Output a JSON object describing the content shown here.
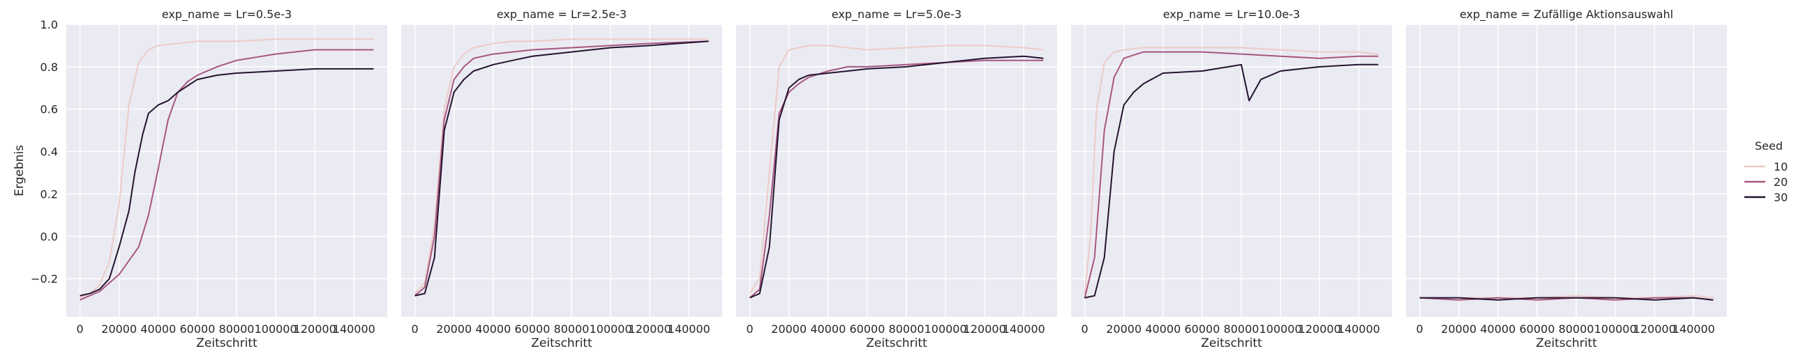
{
  "colors": {
    "panel_bg": "#EAEAF2",
    "grid": "#ffffff",
    "text": "#262626",
    "seed_10": "#eccbc7",
    "seed_20": "#a7567f",
    "seed_30": "#24132f"
  },
  "chart_data": {
    "type": "line",
    "ylabel": "Ergebnis",
    "xlabel": "Zeitschritt",
    "ylim": [
      -0.38,
      1.0
    ],
    "xlim": [
      -7000,
      157000
    ],
    "yticks": [
      -0.2,
      0.0,
      0.2,
      0.4,
      0.6,
      0.8,
      1.0
    ],
    "ytick_labels": [
      "−0.2",
      "0.0",
      "0.2",
      "0.4",
      "0.6",
      "0.8",
      "1.0"
    ],
    "xticks": [
      0,
      20000,
      40000,
      60000,
      80000,
      100000,
      120000,
      140000
    ],
    "xtick_labels": [
      "0",
      "20000",
      "40000",
      "60000",
      "80000",
      "100000",
      "120000",
      "140000"
    ],
    "grid": true,
    "legend": {
      "title": "Seed",
      "placement": "right",
      "entries": [
        {
          "label": "10",
          "color": "#eccbc7"
        },
        {
          "label": "20",
          "color": "#a7567f"
        },
        {
          "label": "30",
          "color": "#24132f"
        }
      ]
    },
    "panels": [
      {
        "title": "exp_name = Lr=0.5e-3",
        "series": [
          {
            "name": "10",
            "x": [
              0,
              5000,
              10000,
              15000,
              20000,
              25000,
              30000,
              35000,
              40000,
              50000,
              60000,
              70000,
              80000,
              100000,
              120000,
              150000
            ],
            "y": [
              -0.29,
              -0.27,
              -0.23,
              -0.12,
              0.15,
              0.62,
              0.82,
              0.88,
              0.9,
              0.91,
              0.92,
              0.92,
              0.92,
              0.93,
              0.93,
              0.93
            ]
          },
          {
            "name": "20",
            "x": [
              0,
              10000,
              20000,
              30000,
              35000,
              40000,
              45000,
              50000,
              55000,
              60000,
              70000,
              80000,
              100000,
              120000,
              150000
            ],
            "y": [
              -0.3,
              -0.26,
              -0.18,
              -0.05,
              0.1,
              0.32,
              0.55,
              0.68,
              0.73,
              0.76,
              0.8,
              0.83,
              0.86,
              0.88,
              0.88
            ]
          },
          {
            "name": "30",
            "x": [
              0,
              5000,
              10000,
              15000,
              20000,
              25000,
              28000,
              32000,
              35000,
              40000,
              45000,
              50000,
              60000,
              70000,
              80000,
              100000,
              120000,
              150000
            ],
            "y": [
              -0.28,
              -0.27,
              -0.25,
              -0.2,
              -0.05,
              0.12,
              0.3,
              0.48,
              0.58,
              0.62,
              0.64,
              0.68,
              0.74,
              0.76,
              0.77,
              0.78,
              0.79,
              0.79
            ]
          }
        ]
      },
      {
        "title": "exp_name = Lr=2.5e-3",
        "series": [
          {
            "name": "10",
            "x": [
              0,
              5000,
              10000,
              15000,
              20000,
              25000,
              30000,
              40000,
              50000,
              60000,
              80000,
              100000,
              120000,
              150000
            ],
            "y": [
              -0.27,
              -0.22,
              0.05,
              0.6,
              0.8,
              0.86,
              0.89,
              0.91,
              0.92,
              0.92,
              0.93,
              0.93,
              0.93,
              0.93
            ]
          },
          {
            "name": "20",
            "x": [
              0,
              5000,
              10000,
              15000,
              20000,
              25000,
              30000,
              40000,
              50000,
              60000,
              80000,
              100000,
              120000,
              150000
            ],
            "y": [
              -0.28,
              -0.24,
              0.0,
              0.55,
              0.74,
              0.8,
              0.84,
              0.86,
              0.87,
              0.88,
              0.89,
              0.9,
              0.91,
              0.92
            ]
          },
          {
            "name": "30",
            "x": [
              0,
              5000,
              10000,
              15000,
              20000,
              25000,
              30000,
              40000,
              50000,
              60000,
              80000,
              100000,
              120000,
              150000
            ],
            "y": [
              -0.28,
              -0.27,
              -0.1,
              0.5,
              0.68,
              0.74,
              0.78,
              0.81,
              0.83,
              0.85,
              0.87,
              0.89,
              0.9,
              0.92
            ]
          }
        ]
      },
      {
        "title": "exp_name = Lr=5.0e-3",
        "series": [
          {
            "name": "10",
            "x": [
              0,
              5000,
              10000,
              15000,
              20000,
              30000,
              40000,
              50000,
              60000,
              80000,
              100000,
              120000,
              140000,
              150000
            ],
            "y": [
              -0.27,
              -0.2,
              0.3,
              0.8,
              0.88,
              0.9,
              0.9,
              0.89,
              0.88,
              0.89,
              0.9,
              0.9,
              0.89,
              0.88
            ]
          },
          {
            "name": "20",
            "x": [
              0,
              5000,
              10000,
              15000,
              20000,
              25000,
              30000,
              40000,
              50000,
              60000,
              80000,
              100000,
              120000,
              140000,
              150000
            ],
            "y": [
              -0.29,
              -0.25,
              0.1,
              0.58,
              0.68,
              0.72,
              0.75,
              0.78,
              0.8,
              0.8,
              0.81,
              0.82,
              0.83,
              0.83,
              0.83
            ]
          },
          {
            "name": "30",
            "x": [
              0,
              5000,
              10000,
              15000,
              20000,
              25000,
              30000,
              40000,
              50000,
              60000,
              80000,
              100000,
              120000,
              140000,
              150000
            ],
            "y": [
              -0.29,
              -0.27,
              -0.05,
              0.55,
              0.7,
              0.74,
              0.76,
              0.77,
              0.78,
              0.79,
              0.8,
              0.82,
              0.84,
              0.85,
              0.84
            ]
          }
        ]
      },
      {
        "title": "exp_name = Lr=10.0e-3",
        "series": [
          {
            "name": "10",
            "x": [
              0,
              3000,
              6000,
              10000,
              15000,
              20000,
              30000,
              40000,
              60000,
              80000,
              100000,
              120000,
              140000,
              150000
            ],
            "y": [
              -0.27,
              0.0,
              0.6,
              0.82,
              0.87,
              0.88,
              0.89,
              0.89,
              0.89,
              0.89,
              0.88,
              0.87,
              0.87,
              0.86
            ]
          },
          {
            "name": "20",
            "x": [
              0,
              5000,
              10000,
              15000,
              20000,
              30000,
              40000,
              60000,
              80000,
              100000,
              120000,
              140000,
              150000
            ],
            "y": [
              -0.29,
              -0.1,
              0.5,
              0.75,
              0.84,
              0.87,
              0.87,
              0.87,
              0.86,
              0.85,
              0.84,
              0.85,
              0.85
            ]
          },
          {
            "name": "30",
            "x": [
              0,
              5000,
              10000,
              15000,
              20000,
              25000,
              30000,
              40000,
              60000,
              80000,
              84000,
              90000,
              100000,
              120000,
              140000,
              150000
            ],
            "y": [
              -0.29,
              -0.28,
              -0.1,
              0.4,
              0.62,
              0.68,
              0.72,
              0.77,
              0.78,
              0.81,
              0.64,
              0.74,
              0.78,
              0.8,
              0.81,
              0.81
            ]
          }
        ]
      },
      {
        "title": "exp_name = Zufällige Aktionsauswahl",
        "series": [
          {
            "name": "10",
            "x": [
              0,
              20000,
              40000,
              60000,
              80000,
              100000,
              120000,
              140000,
              150000
            ],
            "y": [
              -0.29,
              -0.29,
              -0.29,
              -0.29,
              -0.28,
              -0.29,
              -0.29,
              -0.28,
              -0.29
            ]
          },
          {
            "name": "20",
            "x": [
              0,
              20000,
              40000,
              60000,
              80000,
              100000,
              120000,
              140000,
              150000
            ],
            "y": [
              -0.29,
              -0.3,
              -0.29,
              -0.3,
              -0.29,
              -0.3,
              -0.29,
              -0.29,
              -0.3
            ]
          },
          {
            "name": "30",
            "x": [
              0,
              20000,
              40000,
              60000,
              80000,
              100000,
              120000,
              140000,
              150000
            ],
            "y": [
              -0.29,
              -0.29,
              -0.3,
              -0.29,
              -0.29,
              -0.29,
              -0.3,
              -0.29,
              -0.3
            ]
          }
        ]
      }
    ]
  }
}
